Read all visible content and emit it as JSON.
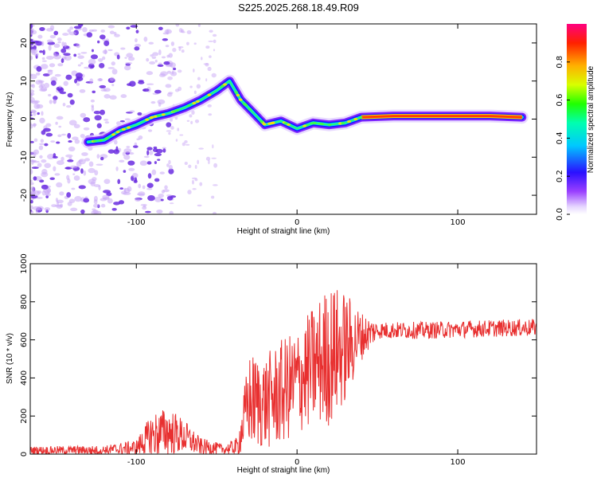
{
  "title": "S225.2025.268.18.49.R09",
  "colors": {
    "snr_line": "#e83030",
    "blob_light": "#c9a8f5",
    "blob_dark": "#6a2ce0"
  },
  "chart_data": [
    {
      "type": "heatmap",
      "panel": "spectrogram",
      "xlabel": "Height of straight line (km)",
      "ylabel": "Frequency (Hz)",
      "xlim": [
        -166,
        149
      ],
      "ylim": [
        -25,
        25
      ],
      "xticks": [
        -100,
        0,
        100
      ],
      "yticks": [
        -20,
        -10,
        0,
        10,
        20
      ],
      "colorbar": {
        "label": "Normalized spectral amplitude",
        "range": [
          0.0,
          1.0
        ],
        "ticks": [
          0.0,
          0.2,
          0.4,
          0.6,
          0.8
        ],
        "colormap": [
          "#ffffff",
          "#e0ccff",
          "#8000ff",
          "#0000ff",
          "#00ffff",
          "#00ff00",
          "#ffff00",
          "#ff8000",
          "#ff0000",
          "#ff0080"
        ]
      },
      "track": [
        {
          "x": -130,
          "y": -6.0
        },
        {
          "x": -120,
          "y": -5.5
        },
        {
          "x": -110,
          "y": -3.0
        },
        {
          "x": -100,
          "y": -1.5
        },
        {
          "x": -90,
          "y": 0.5
        },
        {
          "x": -80,
          "y": 1.5
        },
        {
          "x": -70,
          "y": 3.0
        },
        {
          "x": -60,
          "y": 5.0
        },
        {
          "x": -50,
          "y": 7.5
        },
        {
          "x": -42,
          "y": 10.0
        },
        {
          "x": -35,
          "y": 5.0
        },
        {
          "x": -28,
          "y": 2.0
        },
        {
          "x": -20,
          "y": -1.5
        },
        {
          "x": -10,
          "y": -0.5
        },
        {
          "x": 0,
          "y": -2.5
        },
        {
          "x": 10,
          "y": -1.0
        },
        {
          "x": 20,
          "y": -1.5
        },
        {
          "x": 30,
          "y": -1.0
        },
        {
          "x": 40,
          "y": 0.5
        },
        {
          "x": 60,
          "y": 0.8
        },
        {
          "x": 80,
          "y": 0.8
        },
        {
          "x": 100,
          "y": 0.8
        },
        {
          "x": 120,
          "y": 0.8
        },
        {
          "x": 140,
          "y": 0.5
        }
      ]
    },
    {
      "type": "line",
      "panel": "snr",
      "xlabel": "Height of straight line (km)",
      "ylabel": "SNR (10 * v/v)",
      "xlim": [
        -166,
        149
      ],
      "ylim": [
        0,
        1000
      ],
      "xticks": [
        -100,
        0,
        100
      ],
      "yticks": [
        0,
        200,
        400,
        600,
        800,
        1000
      ],
      "envelope": [
        {
          "x": -166,
          "base": 20,
          "amp": 20
        },
        {
          "x": -120,
          "base": 20,
          "amp": 25
        },
        {
          "x": -100,
          "base": 35,
          "amp": 40
        },
        {
          "x": -90,
          "base": 100,
          "amp": 120
        },
        {
          "x": -80,
          "base": 120,
          "amp": 130
        },
        {
          "x": -70,
          "base": 90,
          "amp": 90
        },
        {
          "x": -60,
          "base": 40,
          "amp": 45
        },
        {
          "x": -45,
          "base": 25,
          "amp": 25
        },
        {
          "x": -37,
          "base": 40,
          "amp": 50
        },
        {
          "x": -30,
          "base": 280,
          "amp": 250
        },
        {
          "x": -20,
          "base": 270,
          "amp": 250
        },
        {
          "x": -10,
          "base": 320,
          "amp": 280
        },
        {
          "x": 0,
          "base": 380,
          "amp": 280
        },
        {
          "x": 10,
          "base": 460,
          "amp": 320
        },
        {
          "x": 20,
          "base": 520,
          "amp": 380
        },
        {
          "x": 30,
          "base": 560,
          "amp": 300
        },
        {
          "x": 40,
          "base": 620,
          "amp": 130
        },
        {
          "x": 50,
          "base": 650,
          "amp": 45
        },
        {
          "x": 80,
          "base": 650,
          "amp": 45
        },
        {
          "x": 120,
          "base": 660,
          "amp": 45
        },
        {
          "x": 149,
          "base": 665,
          "amp": 45
        }
      ]
    }
  ]
}
